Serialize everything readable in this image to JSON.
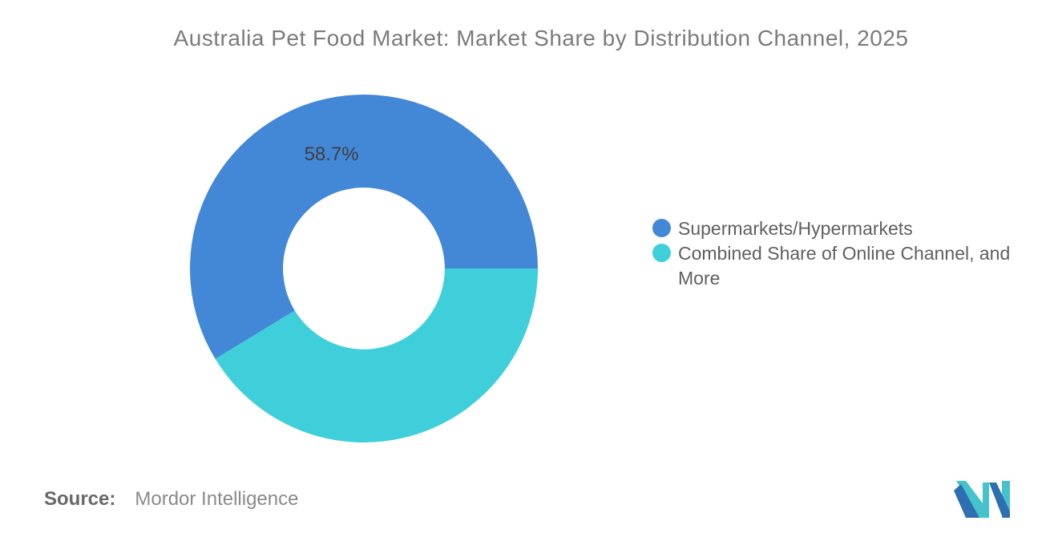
{
  "chart_data": {
    "type": "pie",
    "variant": "donut",
    "title": "Australia Pet Food Market: Market Share by Distribution Channel, 2025",
    "series": [
      {
        "name": "Supermarkets/Hypermarkets",
        "value": 58.7,
        "color": "#4387d7",
        "label": "58.7%"
      },
      {
        "name": "Combined Share of Online Channel, and More",
        "value": 41.3,
        "color": "#3ecfda",
        "label": ""
      }
    ],
    "start_angle_deg": 0,
    "direction": "counterclockwise",
    "inner_radius_ratio": 0.465,
    "label_color": "#3f3f3f",
    "legend_position": "right",
    "background": "#ffffff"
  },
  "footer": {
    "source_label": "Source:",
    "source_value": "Mordor Intelligence"
  },
  "logo": {
    "name": "mordor-intelligence-logo",
    "blue": "#2d6fb0",
    "teal": "#45c2cb"
  },
  "colors": {
    "title_text": "#7b7b7b",
    "legend_text": "#5f5f5f",
    "source_label_text": "#686868",
    "source_value_text": "#8a8a8a"
  }
}
